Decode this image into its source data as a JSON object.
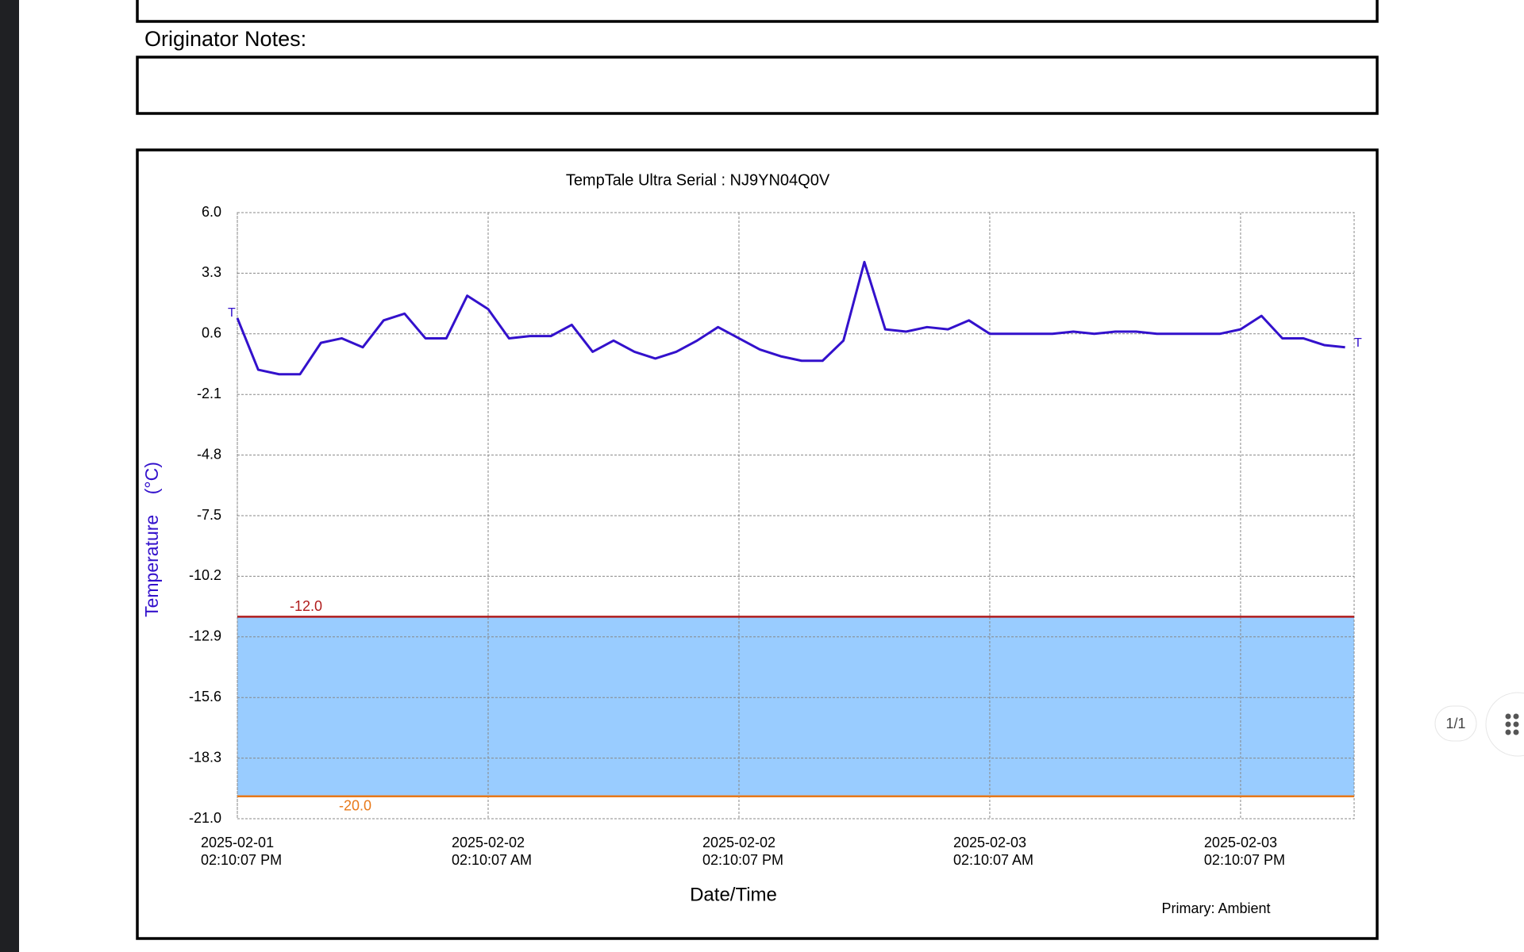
{
  "document": {
    "notes_label": "Originator Notes:",
    "page_indicator": "1/1"
  },
  "chart_data": {
    "type": "line",
    "title": "TempTale Ultra  Serial : NJ9YN04Q0V",
    "ylabel": "Temperature    (°C)",
    "xlabel": "Date/Time",
    "footnote": "Primary: Ambient",
    "ylim": [
      -21,
      6
    ],
    "yticks": [
      {
        "value": 6,
        "label": "6.0"
      },
      3.3,
      0.6,
      -2.1,
      -4.8,
      -7.5,
      -10.2,
      -12.9,
      -15.6,
      -18.3,
      {
        "value": -21,
        "label": "-21.0"
      }
    ],
    "xlim": [
      "2025-02-01 14:10:07",
      "2025-02-03 19:36:07"
    ],
    "xticks": [
      {
        "value": "2025-02-01 14:10:07",
        "label": [
          "2025-02-01",
          "02:10:07 PM"
        ]
      },
      {
        "value": "2025-02-02 02:10:07",
        "label": [
          "2025-02-02",
          "02:10:07 AM"
        ]
      },
      {
        "value": "2025-02-02 14:10:07",
        "label": [
          "2025-02-02",
          "02:10:07 PM"
        ]
      },
      {
        "value": "2025-02-03 02:10:07",
        "label": [
          "2025-02-03",
          "02:10:07 AM"
        ]
      },
      {
        "value": "2025-02-03 14:10:07",
        "label": [
          "2025-02-03",
          "02:10:07 PM"
        ]
      }
    ],
    "grid": true,
    "limits": [
      {
        "value": -12,
        "label": "-12.0",
        "color": "#b01c1c"
      },
      {
        "value": -20,
        "label": "-20.0",
        "color": "#e8791a"
      }
    ],
    "band_color": "#99ccff",
    "trip_markers": [
      "T",
      "T"
    ],
    "x": [
      "2025-02-01 14:10:07",
      "2025-02-01 15:10:07",
      "2025-02-01 16:10:07",
      "2025-02-01 17:10:07",
      "2025-02-01 18:10:07",
      "2025-02-01 19:10:07",
      "2025-02-01 20:10:07",
      "2025-02-01 21:10:07",
      "2025-02-01 22:10:07",
      "2025-02-01 23:10:07",
      "2025-02-02 00:10:07",
      "2025-02-02 01:10:07",
      "2025-02-02 02:10:07",
      "2025-02-02 03:10:07",
      "2025-02-02 04:10:07",
      "2025-02-02 05:10:07",
      "2025-02-02 06:10:07",
      "2025-02-02 07:10:07",
      "2025-02-02 08:10:07",
      "2025-02-02 09:10:07",
      "2025-02-02 10:10:07",
      "2025-02-02 11:10:07",
      "2025-02-02 12:10:07",
      "2025-02-02 13:10:07",
      "2025-02-02 14:10:07",
      "2025-02-02 15:10:07",
      "2025-02-02 16:10:07",
      "2025-02-02 17:10:07",
      "2025-02-02 18:10:07",
      "2025-02-02 19:10:07",
      "2025-02-02 20:10:07",
      "2025-02-02 21:10:07",
      "2025-02-02 22:10:07",
      "2025-02-02 23:10:07",
      "2025-02-03 00:10:07",
      "2025-02-03 01:10:07",
      "2025-02-03 02:10:07",
      "2025-02-03 03:10:07",
      "2025-02-03 04:10:07",
      "2025-02-03 05:10:07",
      "2025-02-03 06:10:07",
      "2025-02-03 07:10:07",
      "2025-02-03 08:10:07",
      "2025-02-03 09:10:07",
      "2025-02-03 10:10:07",
      "2025-02-03 11:10:07",
      "2025-02-03 12:10:07",
      "2025-02-03 13:10:07",
      "2025-02-03 14:10:07",
      "2025-02-03 15:10:07",
      "2025-02-03 16:10:07",
      "2025-02-03 17:10:07",
      "2025-02-03 18:10:07",
      "2025-02-03 19:10:07"
    ],
    "series": [
      {
        "name": "Ambient",
        "color": "#3311cc",
        "values": [
          1.3,
          -1.0,
          -1.2,
          -1.2,
          0.2,
          0.4,
          0.0,
          1.2,
          1.5,
          0.4,
          0.4,
          2.3,
          1.7,
          0.4,
          0.5,
          0.5,
          1.0,
          -0.2,
          0.3,
          -0.2,
          -0.5,
          -0.2,
          0.3,
          0.9,
          0.4,
          -0.1,
          -0.4,
          -0.6,
          -0.6,
          0.3,
          3.8,
          0.8,
          0.7,
          0.9,
          0.8,
          1.2,
          0.6,
          0.6,
          0.6,
          0.6,
          0.7,
          0.6,
          0.7,
          0.7,
          0.6,
          0.6,
          0.6,
          0.6,
          0.8,
          1.4,
          0.4,
          0.4,
          0.1,
          0.0
        ]
      }
    ]
  }
}
